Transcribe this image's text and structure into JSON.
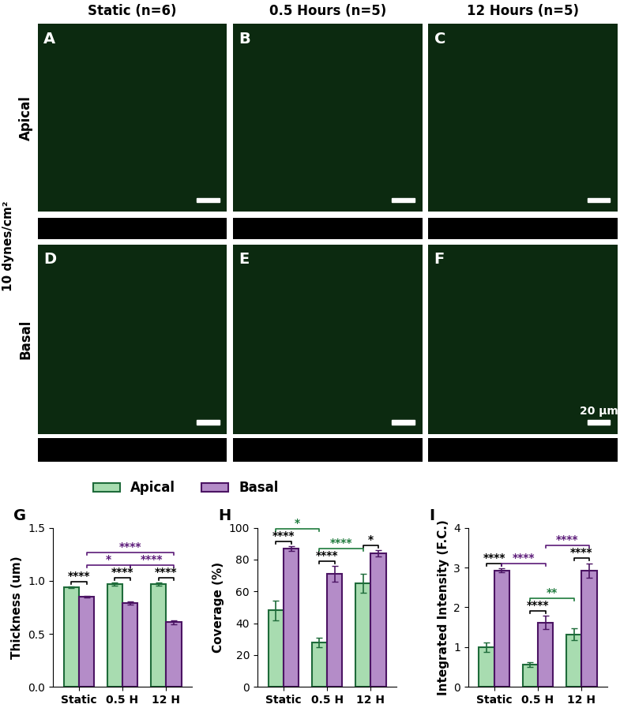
{
  "figure": {
    "columns": [
      "Static (n=6)",
      "0.5 Hours (n=5)",
      "12 Hours (n=5)"
    ],
    "rows": [
      "Apical",
      "Basal"
    ],
    "side_label": "10 dynes/cm²",
    "panel_letters": [
      [
        "A",
        "B",
        "C"
      ],
      [
        "D",
        "E",
        "F"
      ]
    ],
    "scale_bar": "20 μm"
  },
  "chart_data": [
    {
      "type": "bar",
      "title": "G",
      "y_label": "Thickness (um)",
      "categories": [
        "Static",
        "0.5 H",
        "12 H"
      ],
      "series": [
        {
          "name": "Apical",
          "color": "#a8dcb0",
          "values": [
            0.94,
            0.97,
            0.97
          ],
          "errors": [
            0.01,
            0.015,
            0.015
          ]
        },
        {
          "name": "Basal",
          "color": "#b48cc8",
          "values": [
            0.85,
            0.79,
            0.61
          ],
          "errors": [
            0.01,
            0.015,
            0.02
          ]
        }
      ],
      "ylim": [
        0,
        1.5
      ],
      "yticks": [
        {
          "value": 0,
          "label": "0.0"
        },
        {
          "value": 0.5,
          "label": "0.5"
        },
        {
          "value": 1.0,
          "label": "1.0"
        },
        {
          "value": 1.5,
          "label": "1.5"
        }
      ],
      "significance": [
        {
          "a": [
            0,
            0
          ],
          "b": [
            0,
            1
          ],
          "label": "****",
          "color": "#000000"
        },
        {
          "a": [
            1,
            0
          ],
          "b": [
            1,
            1
          ],
          "label": "****",
          "color": "#000000"
        },
        {
          "a": [
            2,
            0
          ],
          "b": [
            2,
            1
          ],
          "label": "****",
          "color": "#000000"
        },
        {
          "a": [
            0,
            1
          ],
          "b": [
            1,
            1
          ],
          "label": "*",
          "color": "#5b1a78"
        },
        {
          "a": [
            1,
            1
          ],
          "b": [
            2,
            1
          ],
          "label": "****",
          "color": "#5b1a78"
        },
        {
          "a": [
            0,
            1
          ],
          "b": [
            2,
            1
          ],
          "label": "****",
          "color": "#5b1a78"
        }
      ]
    },
    {
      "type": "bar",
      "title": "H",
      "y_label": "Coverage (%)",
      "categories": [
        "Static",
        "0.5 H",
        "12 H"
      ],
      "series": [
        {
          "name": "Apical",
          "color": "#a8dcb0",
          "values": [
            48,
            28,
            65
          ],
          "errors": [
            6,
            3,
            6
          ]
        },
        {
          "name": "Basal",
          "color": "#b48cc8",
          "values": [
            87,
            71,
            84
          ],
          "errors": [
            1.5,
            5,
            2
          ]
        }
      ],
      "ylim": [
        0,
        100
      ],
      "yticks": [
        0,
        20,
        40,
        60,
        80,
        100
      ],
      "significance": [
        {
          "a": [
            0,
            0
          ],
          "b": [
            0,
            1
          ],
          "label": "****",
          "color": "#000000"
        },
        {
          "a": [
            1,
            0
          ],
          "b": [
            1,
            1
          ],
          "label": "****",
          "color": "#000000"
        },
        {
          "a": [
            2,
            0
          ],
          "b": [
            2,
            1
          ],
          "label": "*",
          "color": "#000000"
        },
        {
          "a": [
            0,
            0
          ],
          "b": [
            1,
            0
          ],
          "label": "*",
          "color": "#1e7a3c"
        },
        {
          "a": [
            1,
            0
          ],
          "b": [
            2,
            0
          ],
          "label": "****",
          "color": "#1e7a3c"
        }
      ]
    },
    {
      "type": "bar",
      "title": "I",
      "y_label": "Integrated Intensity (F.C.)",
      "categories": [
        "Static",
        "0.5 H",
        "12 H"
      ],
      "series": [
        {
          "name": "Apical",
          "color": "#a8dcb0",
          "values": [
            1.0,
            0.56,
            1.32
          ],
          "errors": [
            0.12,
            0.05,
            0.15
          ]
        },
        {
          "name": "Basal",
          "color": "#b48cc8",
          "values": [
            2.93,
            1.62,
            2.93
          ],
          "errors": [
            0.05,
            0.17,
            0.18
          ]
        }
      ],
      "ylim": [
        0,
        4
      ],
      "yticks": [
        0,
        1,
        2,
        3,
        4
      ],
      "significance": [
        {
          "a": [
            0,
            0
          ],
          "b": [
            0,
            1
          ],
          "label": "****",
          "color": "#000000"
        },
        {
          "a": [
            1,
            0
          ],
          "b": [
            1,
            1
          ],
          "label": "****",
          "color": "#000000"
        },
        {
          "a": [
            2,
            0
          ],
          "b": [
            2,
            1
          ],
          "label": "****",
          "color": "#000000"
        },
        {
          "a": [
            1,
            0
          ],
          "b": [
            2,
            0
          ],
          "label": "**",
          "color": "#1e7a3c"
        },
        {
          "a": [
            1,
            1
          ],
          "b": [
            2,
            1
          ],
          "label": "****",
          "color": "#5b1a78"
        },
        {
          "a": [
            0,
            1
          ],
          "b": [
            1,
            1
          ],
          "label": "****",
          "color": "#5b1a78"
        }
      ]
    }
  ]
}
